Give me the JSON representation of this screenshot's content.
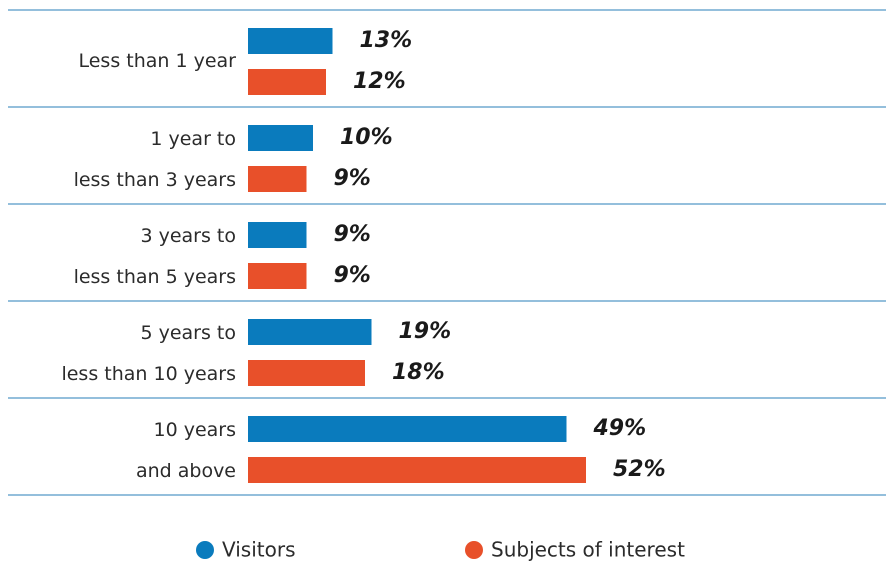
{
  "chart_data": {
    "type": "bar",
    "orientation": "horizontal",
    "categories": [
      "Less than 1 year",
      "1 year to\nless than 3 years",
      "3 years to\nless than 5 years",
      "5 years to\nless than 10 years",
      "10 years\nand above"
    ],
    "series": [
      {
        "name": "Visitors",
        "color": "#0a7bbd",
        "values": [
          13,
          10,
          9,
          19,
          49
        ],
        "value_labels": [
          "13%",
          "10%",
          "9%",
          "19%",
          "49%"
        ]
      },
      {
        "name": "Subjects of interest",
        "color": "#e8502a",
        "values": [
          12,
          9,
          9,
          18,
          52
        ],
        "value_labels": [
          "12%",
          "9%",
          "9%",
          "18%",
          "52%"
        ]
      }
    ]
  }
}
